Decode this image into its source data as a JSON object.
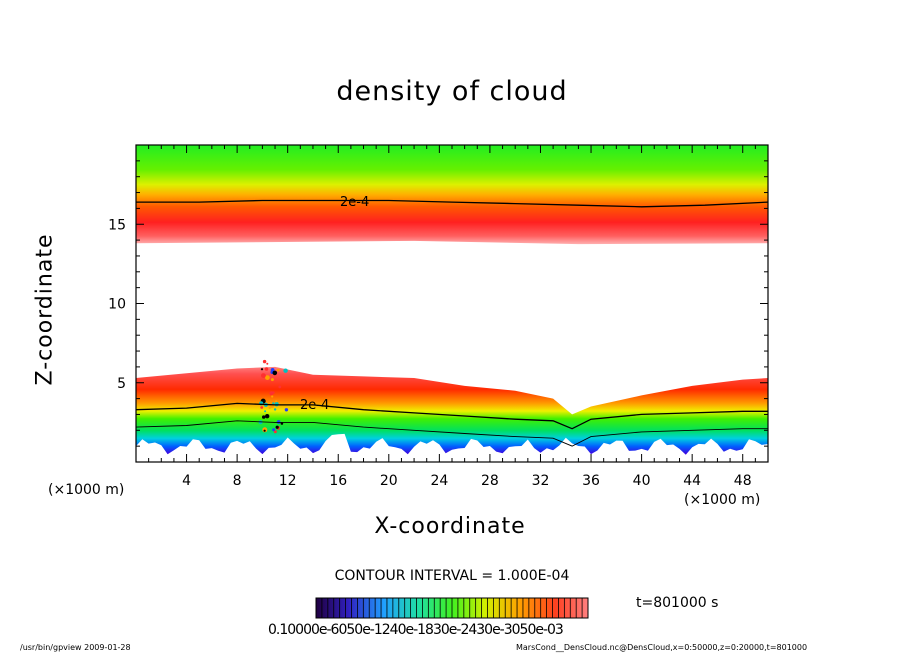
{
  "chart_data": {
    "type": "heatmap",
    "title": "density of cloud",
    "xlabel": "X-coordinate",
    "ylabel": "Z-coordinate",
    "x_unit": "(×1000 m)",
    "xlim": [
      0,
      50
    ],
    "ylim": [
      0,
      20
    ],
    "x_ticks": [
      "4",
      "8",
      "12",
      "16",
      "20",
      "24",
      "28",
      "32",
      "36",
      "40",
      "44",
      "48"
    ],
    "y_ticks": [
      "5",
      "10",
      "15"
    ],
    "contour_labels": [
      "2e-4",
      "2e-4"
    ],
    "contour_interval": "CONTOUR INTERVAL = 1.000E-04",
    "time": "t=801000 s",
    "colorbar_labels": "0.10000e-6050e-1240e-1830e-2430e-3050e-03",
    "colormap_range": [
      "purple",
      "blue",
      "cyan",
      "green",
      "yellow",
      "orange",
      "red"
    ],
    "layers": [
      {
        "name": "upper cloud band",
        "z_bottom": 13.8,
        "z_top": 20,
        "contour_z": 16.3
      },
      {
        "name": "lower cloud band",
        "z_bottom": 0.5,
        "z_top": 5.5,
        "contour_z": 3.3
      }
    ],
    "lower_top_profile": [
      [
        0,
        5.3
      ],
      [
        4,
        5.6
      ],
      [
        8,
        5.9
      ],
      [
        11,
        6.0
      ],
      [
        14,
        5.5
      ],
      [
        18,
        5.4
      ],
      [
        22,
        5.3
      ],
      [
        26,
        4.8
      ],
      [
        30,
        4.5
      ],
      [
        33,
        4.0
      ],
      [
        34.5,
        3.0
      ],
      [
        36,
        3.5
      ],
      [
        40,
        4.2
      ],
      [
        44,
        4.8
      ],
      [
        48,
        5.2
      ],
      [
        50,
        5.3
      ]
    ],
    "lower_contour_profile": [
      [
        0,
        3.3
      ],
      [
        4,
        3.4
      ],
      [
        8,
        3.7
      ],
      [
        11,
        3.6
      ],
      [
        14,
        3.6
      ],
      [
        18,
        3.3
      ],
      [
        22,
        3.1
      ],
      [
        26,
        2.9
      ],
      [
        30,
        2.7
      ],
      [
        33,
        2.6
      ],
      [
        34.5,
        2.1
      ],
      [
        36,
        2.7
      ],
      [
        40,
        3.0
      ],
      [
        44,
        3.1
      ],
      [
        48,
        3.2
      ],
      [
        50,
        3.2
      ]
    ],
    "upper_contour_profile": [
      [
        0,
        16.4
      ],
      [
        5,
        16.4
      ],
      [
        10,
        16.5
      ],
      [
        15,
        16.5
      ],
      [
        20,
        16.5
      ],
      [
        25,
        16.4
      ],
      [
        30,
        16.3
      ],
      [
        35,
        16.2
      ],
      [
        40,
        16.1
      ],
      [
        45,
        16.2
      ],
      [
        50,
        16.4
      ]
    ]
  },
  "footer": {
    "left": "/usr/bin/gpview   2009-01-28",
    "right": "MarsCond__DensCloud.nc@DensCloud,x=0:50000,z=0:20000,t=801000"
  },
  "colors": {
    "background": "#ffffff",
    "axis": "#000000"
  }
}
